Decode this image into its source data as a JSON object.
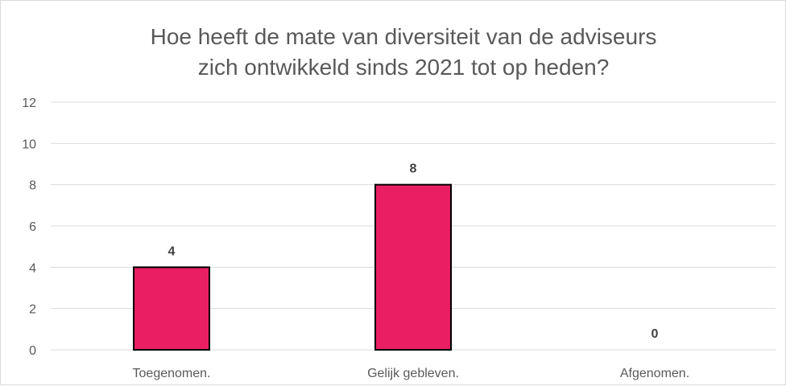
{
  "chart_data": {
    "type": "bar",
    "title_lines": [
      "Hoe heeft de mate van diversiteit van de adviseurs",
      "zich ontwikkeld sinds 2021 tot op heden?"
    ],
    "categories": [
      "Toegenomen.",
      "Gelijk gebleven.",
      "Afgenomen."
    ],
    "values": [
      4,
      8,
      0
    ],
    "data_labels": [
      "4",
      "8",
      "0"
    ],
    "yticks": [
      "0",
      "2",
      "4",
      "6",
      "8",
      "10",
      "12"
    ],
    "ylim": [
      0,
      12
    ],
    "grid": true,
    "legend": "none",
    "colors": {
      "bar": "#e91e63",
      "bar_stroke": "#000000",
      "grid": "#d9d9d9",
      "text": "#595959"
    }
  }
}
